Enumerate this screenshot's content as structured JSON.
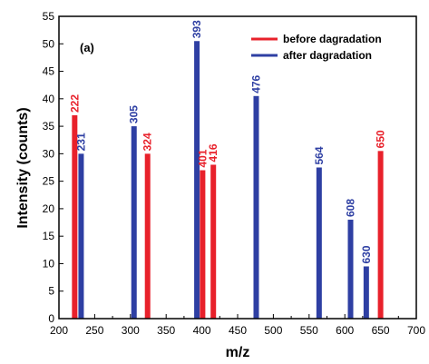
{
  "chart_data": {
    "type": "bar",
    "panel_label": "(a)",
    "xlabel": "m/z",
    "ylabel": "Intensity  (counts)",
    "xlim": [
      200,
      700
    ],
    "ylim": [
      0,
      55
    ],
    "xticks": [
      200,
      250,
      300,
      350,
      400,
      450,
      500,
      550,
      600,
      650,
      700
    ],
    "yticks": [
      0,
      5,
      10,
      15,
      20,
      25,
      30,
      35,
      40,
      45,
      50,
      55
    ],
    "legend_position": "top-right",
    "series": [
      {
        "name": "before dagradation",
        "color": "#e8212b",
        "points": [
          {
            "x": 222,
            "y": 37,
            "label": "222"
          },
          {
            "x": 324,
            "y": 30,
            "label": "324"
          },
          {
            "x": 401,
            "y": 27,
            "label": "401"
          },
          {
            "x": 416,
            "y": 28,
            "label": "416"
          },
          {
            "x": 650,
            "y": 30.5,
            "label": "650"
          }
        ]
      },
      {
        "name": "after dagradation",
        "color": "#2e3fa3",
        "points": [
          {
            "x": 231,
            "y": 30,
            "label": "231"
          },
          {
            "x": 305,
            "y": 35,
            "label": "305"
          },
          {
            "x": 393,
            "y": 50.5,
            "label": "393"
          },
          {
            "x": 476,
            "y": 40.5,
            "label": "476"
          },
          {
            "x": 564,
            "y": 27.5,
            "label": "564"
          },
          {
            "x": 608,
            "y": 18,
            "label": "608"
          },
          {
            "x": 630,
            "y": 9.5,
            "label": "630"
          }
        ]
      }
    ]
  }
}
